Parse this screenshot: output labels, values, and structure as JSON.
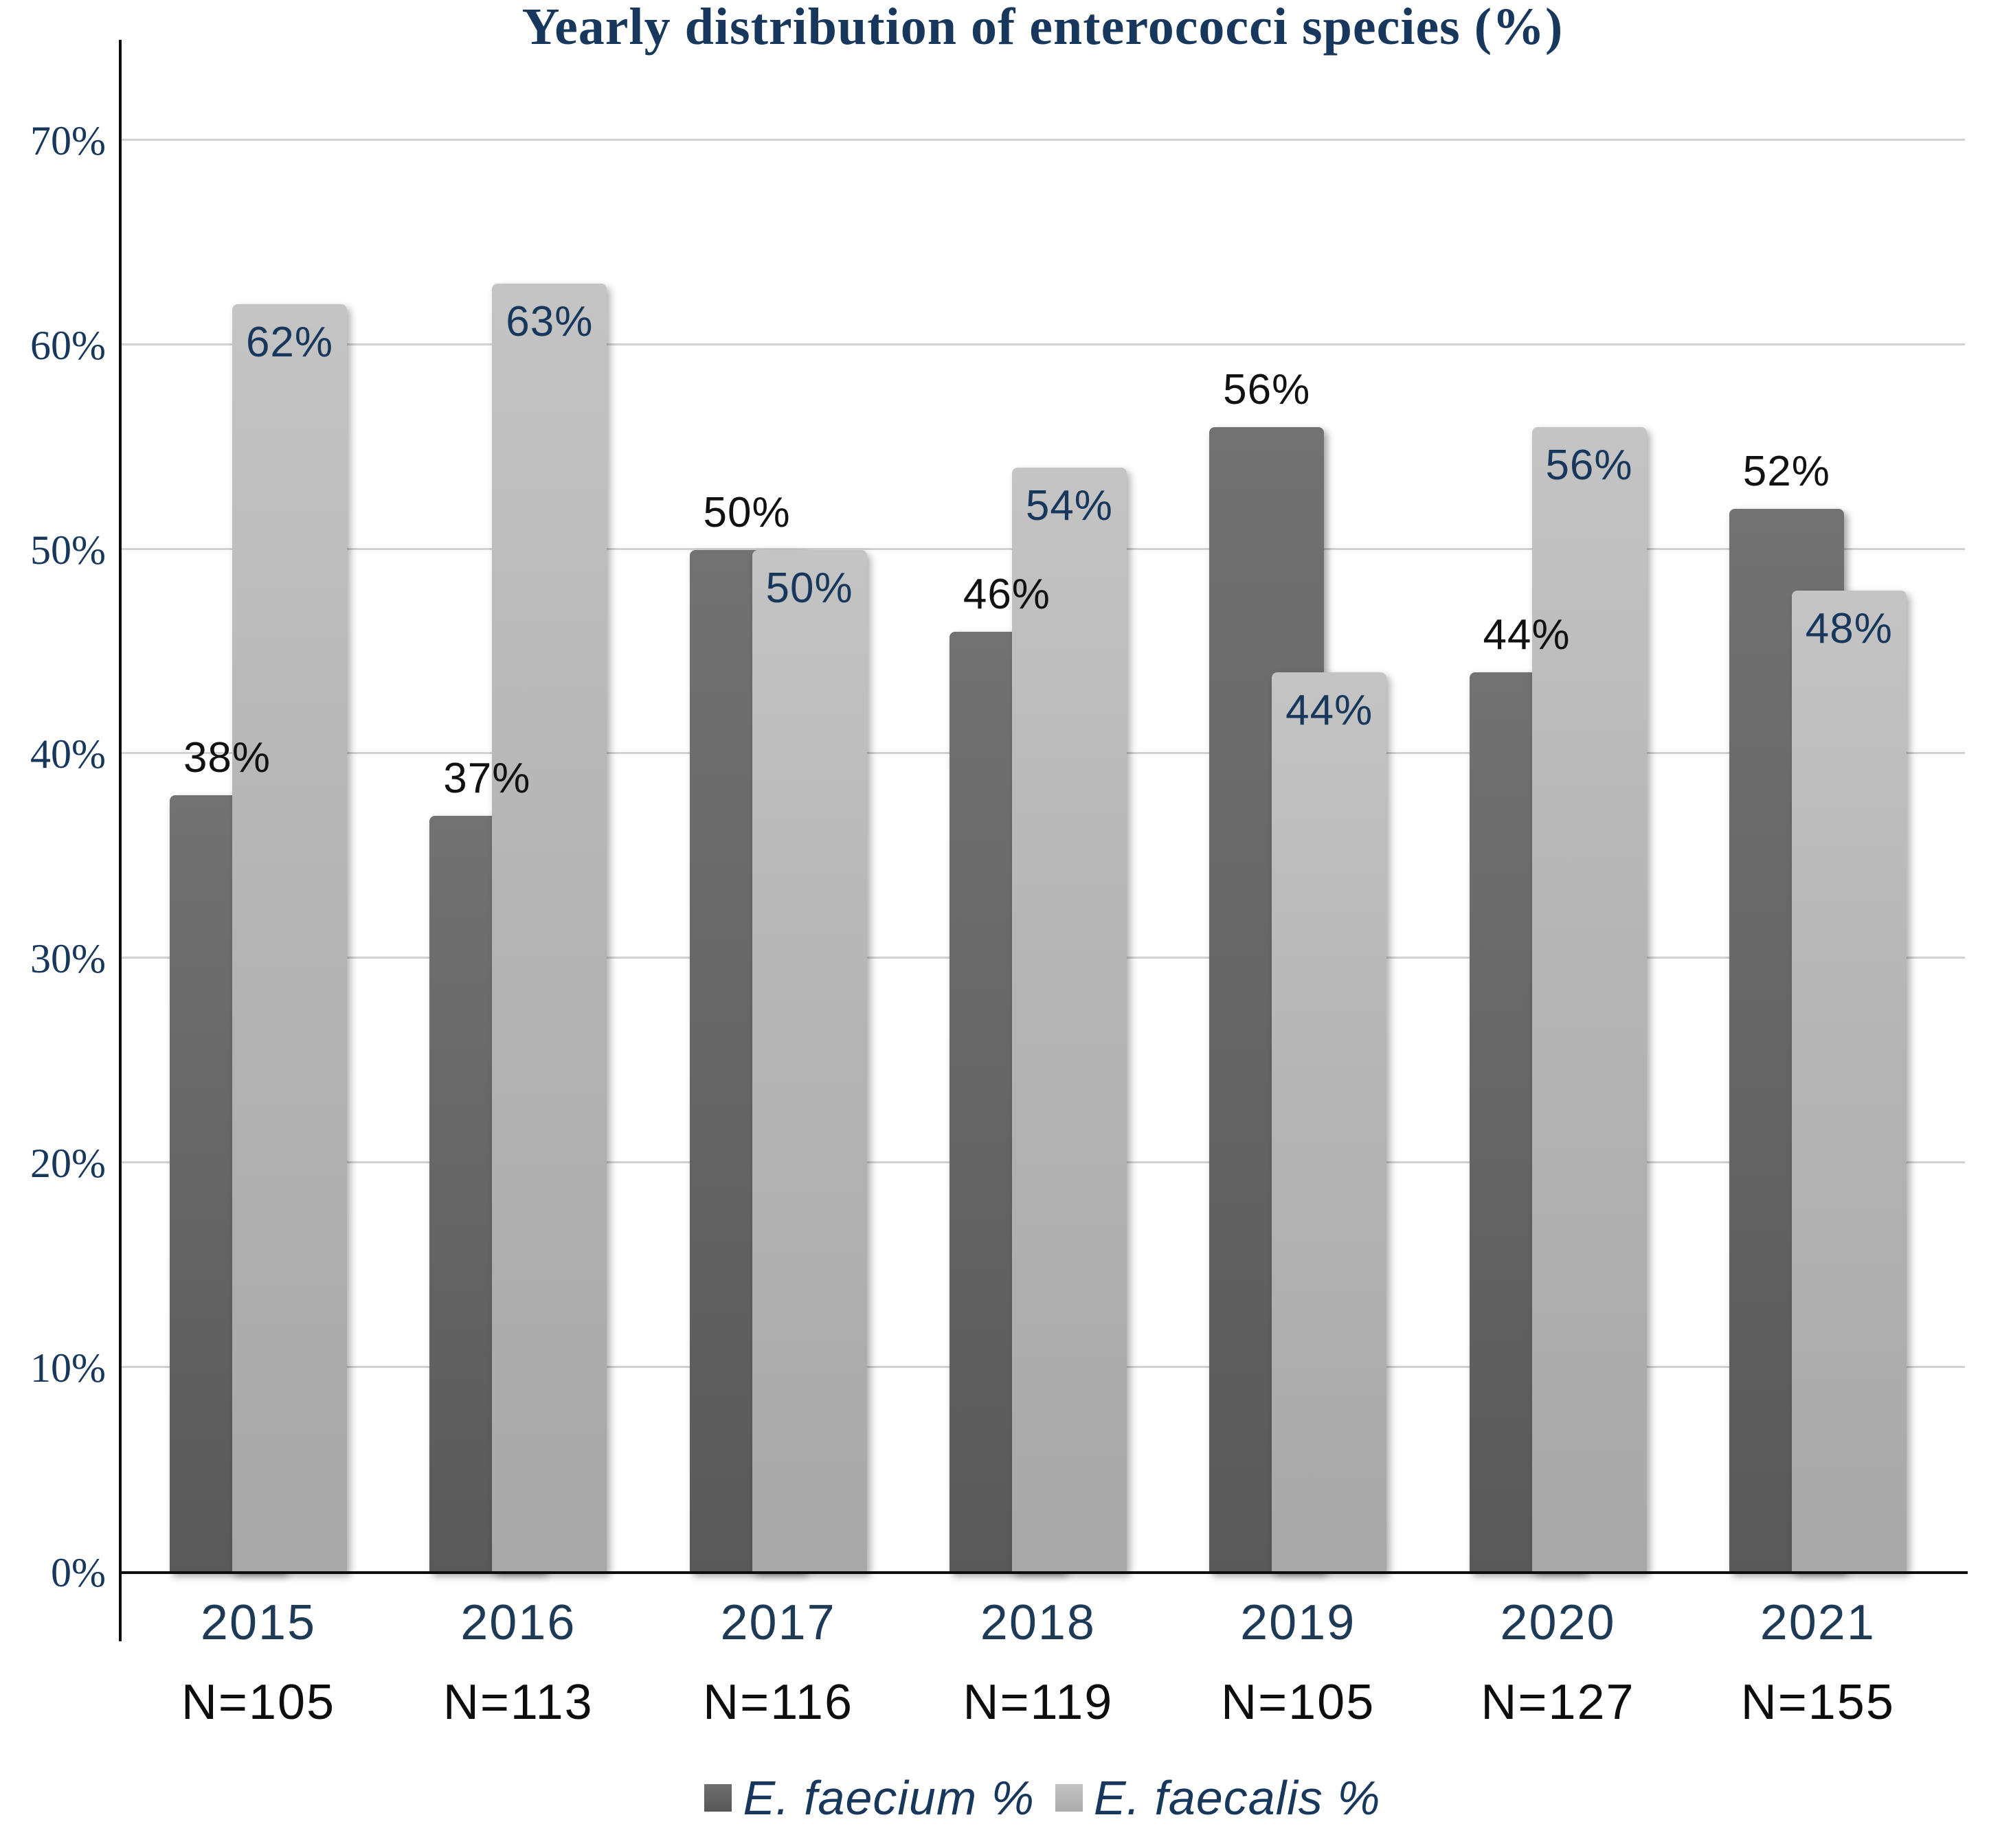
{
  "chart_data": {
    "type": "bar",
    "title": "Yearly distribution of enterococci species (%)",
    "categories": [
      "2015",
      "2016",
      "2017",
      "2018",
      "2019",
      "2020",
      "2021"
    ],
    "n_labels": [
      "N=105",
      "N=113",
      "N=116",
      "N=119",
      "N=105",
      "N=127",
      "N=155"
    ],
    "series": [
      {
        "name": "E. faecium %",
        "color": "#666666",
        "values": [
          38,
          37,
          50,
          46,
          56,
          44,
          52
        ]
      },
      {
        "name": "E. faecalis %",
        "color": "#b5b5b5",
        "values": [
          62,
          63,
          50,
          54,
          44,
          56,
          48
        ]
      }
    ],
    "y_ticks": [
      "0%",
      "10%",
      "20%",
      "30%",
      "40%",
      "50%",
      "60%",
      "70%"
    ],
    "ylim": [
      0,
      75
    ],
    "grid": true,
    "legend_position": "bottom",
    "data_label_suffix": "%"
  },
  "colors": {
    "title_text": "#17375c",
    "axis_tick_text": "#17375c",
    "year_label_text": "#1d3a57",
    "n_label_text": "#0d0d0d",
    "faecium_label_text": "#111111",
    "faecalis_label_text": "#17375c",
    "gridline": "#d2d2d2",
    "axis_line": "#0d0d0d",
    "legend_text": "#17375c"
  }
}
